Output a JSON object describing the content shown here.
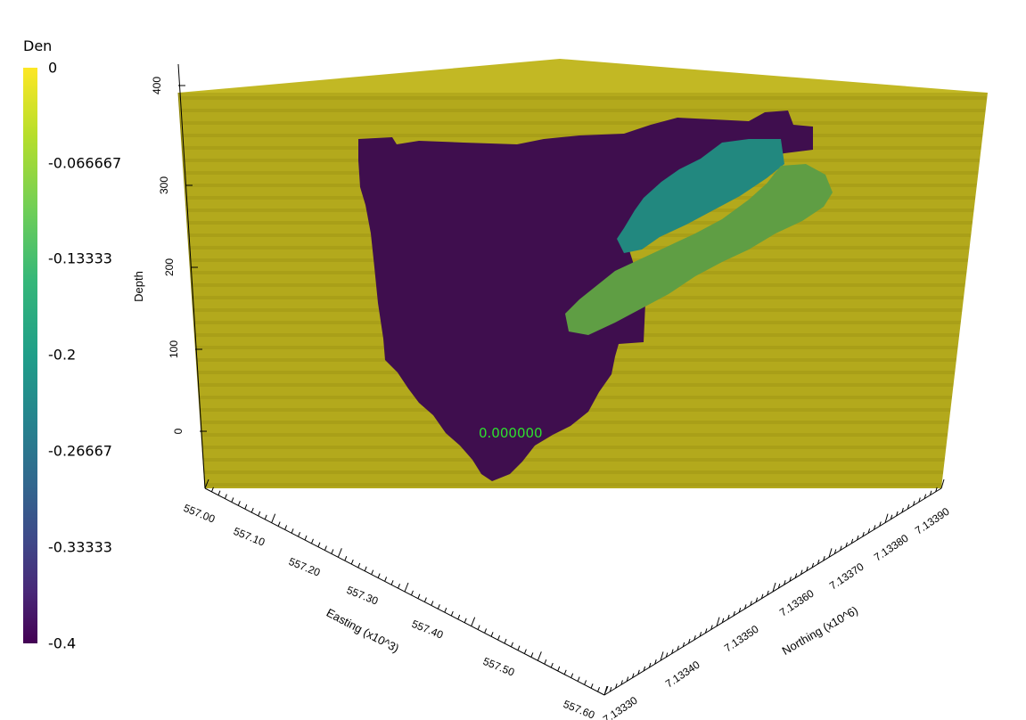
{
  "colorbar": {
    "title": "Den",
    "labels": [
      "0",
      "-0.066667",
      "-0.13333",
      "-0.2",
      "-0.26667",
      "-0.33333",
      "-0.4"
    ]
  },
  "axes": {
    "depth": {
      "title": "Depth",
      "ticks": [
        "0",
        "100",
        "200",
        "300",
        "400"
      ]
    },
    "easting": {
      "title": "Easting (x10^3)",
      "ticks": [
        "557.00",
        "557.10",
        "557.20",
        "557.30",
        "557.40",
        "557.50",
        "557.60"
      ]
    },
    "northing": {
      "title": "Northing (x10^6)",
      "ticks": [
        "7.13330",
        "7.13340",
        "7.13350",
        "7.13360",
        "7.13370",
        "7.13380",
        "7.13390"
      ]
    }
  },
  "probe_value": "0.000000",
  "colors": {
    "background": "#b5ab1e",
    "low_density_body": "#3f0e4e",
    "teal_body": "#22887f",
    "green_body": "#5f9e44"
  }
}
